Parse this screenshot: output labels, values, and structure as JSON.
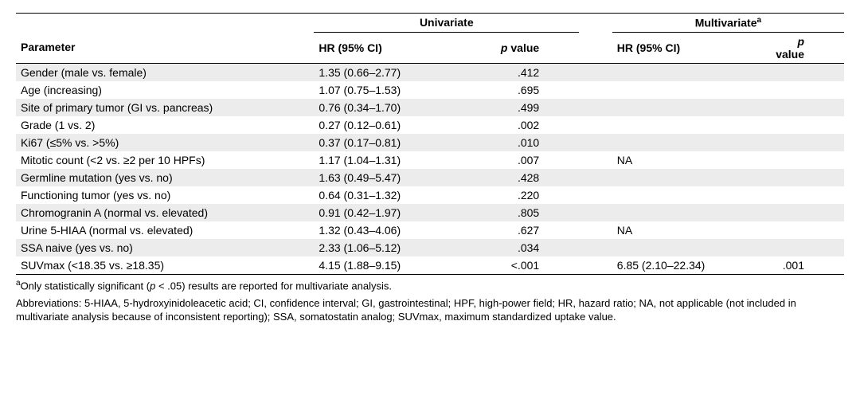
{
  "header": {
    "parameter": "Parameter",
    "univariate": "Univariate",
    "multivariate_html": "Multivariate<sup>a</sup>",
    "hr_ci": "HR (95% CI)",
    "p_value_html": "<span class='ital'>p</span> value"
  },
  "col_widths": [
    "36%",
    "20%",
    "12%",
    "4%",
    "18%",
    "10%"
  ],
  "rows": [
    {
      "param": "Gender (male vs. female)",
      "u_hr": "1.35 (0.66–2.77)",
      "u_p": ".412",
      "m_hr": "",
      "m_p": ""
    },
    {
      "param": "Age (increasing)",
      "u_hr": "1.07 (0.75–1.53)",
      "u_p": ".695",
      "m_hr": "",
      "m_p": ""
    },
    {
      "param": "Site of primary tumor (GI vs. pancreas)",
      "u_hr": "0.76 (0.34–1.70)",
      "u_p": ".499",
      "m_hr": "",
      "m_p": ""
    },
    {
      "param": "Grade (1 vs. 2)",
      "u_hr": "0.27 (0.12–0.61)",
      "u_p": ".002",
      "m_hr": "",
      "m_p": ""
    },
    {
      "param": "Ki67 (≤5% vs. >5%)",
      "u_hr": "0.37 (0.17–0.81)",
      "u_p": ".010",
      "m_hr": "",
      "m_p": ""
    },
    {
      "param": "Mitotic count (<2 vs. ≥2 per 10 HPFs)",
      "u_hr": "1.17 (1.04–1.31)",
      "u_p": ".007",
      "m_hr": "NA",
      "m_p": ""
    },
    {
      "param": "Germline mutation (yes vs. no)",
      "u_hr": "1.63 (0.49–5.47)",
      "u_p": ".428",
      "m_hr": "",
      "m_p": ""
    },
    {
      "param": "Functioning tumor (yes vs. no)",
      "u_hr": "0.64 (0.31–1.32)",
      "u_p": ".220",
      "m_hr": "",
      "m_p": ""
    },
    {
      "param": "Chromogranin A (normal vs. elevated)",
      "u_hr": "0.91 (0.42–1.97)",
      "u_p": ".805",
      "m_hr": "",
      "m_p": ""
    },
    {
      "param": "Urine 5-HIAA (normal vs. elevated)",
      "u_hr": "1.32 (0.43–4.06)",
      "u_p": ".627",
      "m_hr": "NA",
      "m_p": ""
    },
    {
      "param": "SSA naive (yes vs. no)",
      "u_hr": "2.33 (1.06–5.12)",
      "u_p": ".034",
      "m_hr": "",
      "m_p": ""
    },
    {
      "param": "SUVmax (<18.35 vs. ≥18.35)",
      "u_hr": "4.15 (1.88–9.15)",
      "u_p": "<.001",
      "m_hr": "6.85 (2.10–22.34)",
      "m_p": ".001"
    }
  ],
  "footnotes": {
    "a_html": "<sup>a</sup>Only statistically significant (<span class='ital'>p</span> &lt; .05) results are reported for multivariate analysis.",
    "abbrev": "Abbreviations: 5-HIAA, 5-hydroxyinidoleacetic acid; CI, confidence interval; GI, gastrointestinal; HPF, high-power field; HR, hazard ratio; NA, not applicable (not included in multivariate analysis because of inconsistent reporting); SSA, somatostatin analog; SUVmax, maximum standardized uptake value."
  }
}
